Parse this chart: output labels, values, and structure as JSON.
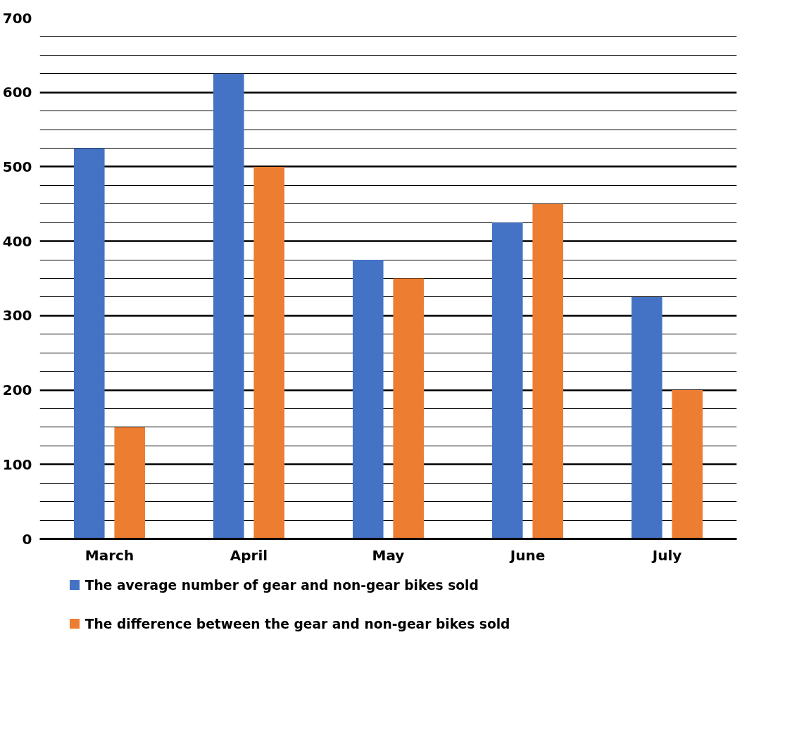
{
  "chart_data": {
    "type": "bar",
    "categories": [
      "March",
      "April",
      "May",
      "June",
      "July"
    ],
    "series": [
      {
        "name": "The average number of gear and non-gear bikes sold",
        "color": "#4472c4",
        "values": [
          525,
          625,
          375,
          425,
          325
        ]
      },
      {
        "name": "The difference between the gear and non-gear bikes sold",
        "color": "#ed7d31",
        "values": [
          150,
          500,
          350,
          450,
          200
        ]
      }
    ],
    "ylim": [
      0,
      700
    ],
    "yticks": [
      0,
      {
        "value": 25,
        "label": null
      },
      {
        "value": 50,
        "label": null
      },
      {
        "value": 75,
        "label": null
      },
      100,
      {
        "value": 125,
        "label": null
      },
      {
        "value": 150,
        "label": null
      },
      {
        "value": 175,
        "label": null
      },
      200,
      {
        "value": 225,
        "label": null
      },
      {
        "value": 250,
        "label": null
      },
      {
        "value": 275,
        "label": null
      },
      300,
      {
        "value": 325,
        "label": null
      },
      {
        "value": 350,
        "label": null
      },
      {
        "value": 375,
        "label": null
      },
      400,
      {
        "value": 425,
        "label": null
      },
      {
        "value": 450,
        "label": null
      },
      {
        "value": 475,
        "label": null
      },
      500,
      {
        "value": 525,
        "label": null
      },
      {
        "value": 550,
        "label": null
      },
      {
        "value": 575,
        "label": null
      },
      600,
      {
        "value": 625,
        "label": null
      },
      {
        "value": 650,
        "label": null
      },
      {
        "value": 675,
        "label": null
      },
      700
    ],
    "grid": "y",
    "legend": "bottom"
  }
}
